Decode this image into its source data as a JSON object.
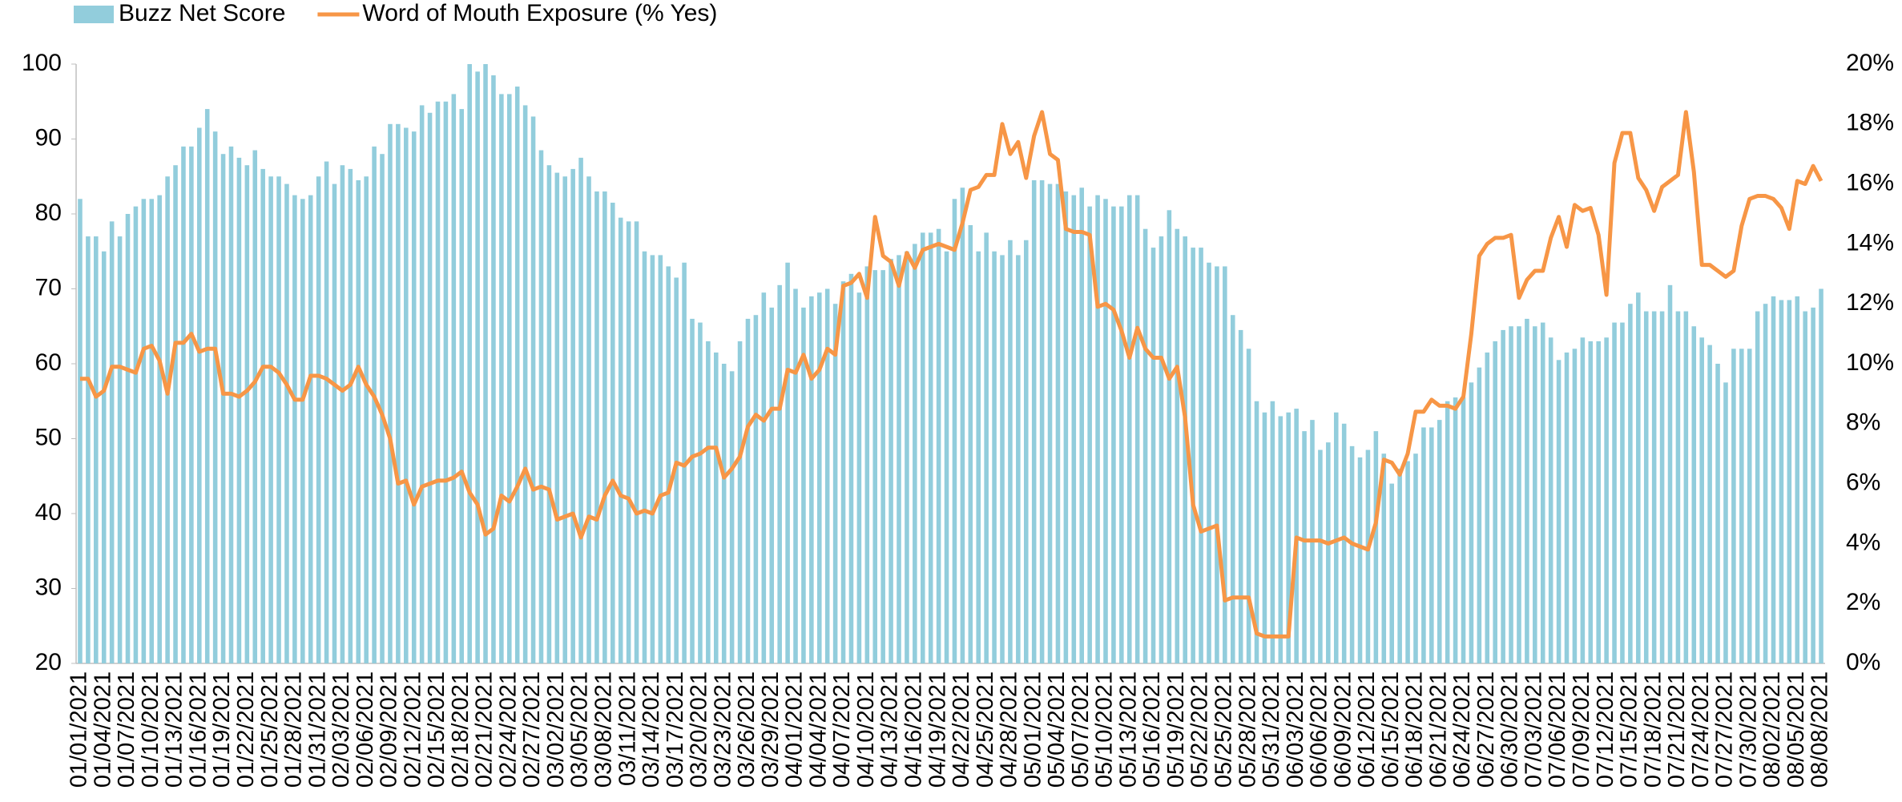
{
  "chart_data": {
    "type": "bar_line",
    "categories": [
      "01/01/2021",
      null,
      null,
      "01/04/2021",
      null,
      null,
      "01/07/2021",
      null,
      null,
      "01/10/2021",
      null,
      null,
      "01/13/2021",
      null,
      null,
      "01/16/2021",
      null,
      null,
      "01/19/2021",
      null,
      null,
      "01/22/2021",
      null,
      null,
      "01/25/2021",
      null,
      null,
      "01/28/2021",
      null,
      null,
      "01/31/2021",
      null,
      null,
      "02/03/2021",
      null,
      null,
      "02/06/2021",
      null,
      null,
      "02/09/2021",
      null,
      null,
      "02/12/2021",
      null,
      null,
      "02/15/2021",
      null,
      null,
      "02/18/2021",
      null,
      null,
      "02/21/2021",
      null,
      null,
      "02/24/2021",
      null,
      null,
      "02/27/2021",
      null,
      null,
      "03/02/2021",
      null,
      null,
      "03/05/2021",
      null,
      null,
      "03/08/2021",
      null,
      null,
      "03/11/2021",
      null,
      null,
      "03/14/2021",
      null,
      null,
      "03/17/2021",
      null,
      null,
      "03/20/2021",
      null,
      null,
      "03/23/2021",
      null,
      null,
      "03/26/2021",
      null,
      null,
      "03/29/2021",
      null,
      null,
      "04/01/2021",
      null,
      null,
      "04/04/2021",
      null,
      null,
      "04/07/2021",
      null,
      null,
      "04/10/2021",
      null,
      null,
      "04/13/2021",
      null,
      null,
      "04/16/2021",
      null,
      null,
      "04/19/2021",
      null,
      null,
      "04/22/2021",
      null,
      null,
      "04/25/2021",
      null,
      null,
      "04/28/2021",
      null,
      null,
      "05/01/2021",
      null,
      null,
      "05/04/2021",
      null,
      null,
      "05/07/2021",
      null,
      null,
      "05/10/2021",
      null,
      null,
      "05/13/2021",
      null,
      null,
      "05/16/2021",
      null,
      null,
      "05/19/2021",
      null,
      null,
      "05/22/2021",
      null,
      null,
      "05/25/2021",
      null,
      null,
      "05/28/2021",
      null,
      null,
      "05/31/2021",
      null,
      null,
      "06/03/2021",
      null,
      null,
      "06/06/2021",
      null,
      null,
      "06/09/2021",
      null,
      null,
      "06/12/2021",
      null,
      null,
      "06/15/2021",
      null,
      null,
      "06/18/2021",
      null,
      null,
      "06/21/2021",
      null,
      null,
      "06/24/2021",
      null,
      null,
      "06/27/2021",
      null,
      null,
      "06/30/2021",
      null,
      null,
      "07/03/2021",
      null,
      null,
      "07/06/2021",
      null,
      null,
      "07/09/2021",
      null,
      null,
      "07/12/2021",
      null,
      null,
      "07/15/2021",
      null,
      null,
      "07/18/2021",
      null,
      null,
      "07/21/2021",
      null,
      null,
      "07/24/2021",
      null,
      null,
      "07/27/2021",
      null,
      null,
      "07/30/2021",
      null,
      null,
      "08/02/2021",
      null,
      null,
      "08/05/2021",
      null,
      null,
      "08/08/2021"
    ],
    "series": [
      {
        "name": "Buzz Net Score",
        "type": "bar",
        "color": "#92cddc",
        "values": [
          82,
          77,
          77,
          75,
          79,
          77,
          80,
          81,
          82,
          82,
          82.5,
          85,
          86.5,
          89,
          89,
          91.5,
          94,
          91,
          88,
          89,
          87.5,
          86.5,
          88.5,
          86,
          85,
          85,
          84,
          82.5,
          82,
          82.5,
          85,
          87,
          84,
          86.5,
          86,
          84.5,
          85,
          89,
          88,
          92,
          92,
          91.5,
          91,
          94.5,
          93.5,
          95,
          95,
          96,
          94,
          100,
          99,
          100,
          98.5,
          96,
          96,
          97,
          94.5,
          93,
          88.5,
          86.5,
          85.5,
          85,
          86,
          87.5,
          85,
          83,
          83,
          81.5,
          79.5,
          79,
          79,
          75,
          74.5,
          74.5,
          73,
          71.5,
          73.5,
          66,
          65.5,
          63,
          61.5,
          60,
          59,
          63,
          66,
          66.5,
          69.5,
          67.5,
          70.5,
          73.5,
          70,
          67.5,
          69,
          69.5,
          70,
          68,
          71,
          72,
          69.5,
          73,
          72.5,
          72.5,
          74,
          74.5,
          75,
          76,
          77.5,
          77.5,
          78,
          75,
          82,
          83.5,
          78.5,
          75,
          77.5,
          75,
          74.5,
          76.5,
          74.5,
          76.5,
          84.5,
          84.5,
          84,
          84,
          83,
          82.5,
          83.5,
          81,
          82.5,
          82,
          81,
          81,
          82.5,
          82.5,
          78,
          75.5,
          77,
          80.5,
          78,
          77,
          75.5,
          75.5,
          73.5,
          73,
          73,
          66.5,
          64.5,
          62,
          55,
          53.5,
          55,
          53,
          53.5,
          54,
          51,
          52.5,
          48.5,
          49.5,
          53.5,
          52,
          49,
          47.5,
          48.5,
          51,
          48,
          44,
          46,
          47,
          48,
          51.5,
          51.5,
          52.5,
          55,
          55.5,
          55.5,
          57.5,
          59.5,
          61.5,
          63,
          64.5,
          65,
          65,
          66,
          65,
          65.5,
          63.5,
          60.5,
          61.5,
          62,
          63.5,
          63,
          63,
          63.5,
          65.5,
          65.5,
          68,
          69.5,
          67,
          67,
          67,
          70.5,
          67,
          67,
          65,
          63.5,
          62.5,
          60,
          57.5,
          62,
          62,
          62,
          67,
          68,
          69,
          68.5,
          68.5,
          69,
          67,
          67.5,
          70
        ]
      },
      {
        "name": "Word of Mouth Exposure (% Yes)",
        "type": "line",
        "axis": "y2",
        "color": "#f79646",
        "values": [
          9.5,
          9.5,
          8.9,
          9.1,
          9.9,
          9.9,
          9.8,
          9.7,
          10.5,
          10.6,
          10.1,
          9.0,
          10.7,
          10.7,
          11.0,
          10.4,
          10.5,
          10.5,
          9.0,
          9.0,
          8.9,
          9.1,
          9.4,
          9.9,
          9.9,
          9.7,
          9.3,
          8.8,
          8.8,
          9.6,
          9.6,
          9.5,
          9.3,
          9.1,
          9.3,
          9.9,
          9.3,
          8.9,
          8.3,
          7.5,
          6.0,
          6.1,
          5.3,
          5.9,
          6.0,
          6.1,
          6.1,
          6.2,
          6.4,
          5.7,
          5.3,
          4.3,
          4.5,
          5.6,
          5.4,
          5.9,
          6.5,
          5.8,
          5.9,
          5.8,
          4.8,
          4.9,
          5.0,
          4.2,
          4.9,
          4.8,
          5.6,
          6.1,
          5.6,
          5.5,
          5.0,
          5.1,
          5.0,
          5.6,
          5.7,
          6.7,
          6.6,
          6.9,
          7.0,
          7.2,
          7.2,
          6.2,
          6.5,
          6.9,
          7.9,
          8.3,
          8.1,
          8.5,
          8.5,
          9.8,
          9.7,
          10.3,
          9.5,
          9.8,
          10.5,
          10.3,
          12.6,
          12.7,
          13.0,
          12.2,
          14.9,
          13.6,
          13.4,
          12.6,
          13.7,
          13.2,
          13.8,
          13.9,
          14.0,
          13.9,
          13.8,
          14.7,
          15.8,
          15.9,
          16.3,
          16.3,
          18.0,
          17.0,
          17.4,
          16.2,
          17.6,
          18.4,
          17.0,
          16.8,
          14.5,
          14.4,
          14.4,
          14.3,
          11.9,
          12.0,
          11.8,
          11.1,
          10.2,
          11.2,
          10.5,
          10.2,
          10.2,
          9.5,
          9.9,
          8.2,
          5.3,
          4.4,
          4.5,
          4.6,
          2.1,
          2.2,
          2.2,
          2.2,
          1.0,
          0.9,
          0.9,
          0.9,
          0.9,
          4.2,
          4.1,
          4.1,
          4.1,
          4.0,
          4.1,
          4.2,
          4.0,
          3.9,
          3.8,
          4.7,
          6.8,
          6.7,
          6.3,
          7.0,
          8.4,
          8.4,
          8.8,
          8.6,
          8.6,
          8.5,
          8.9,
          11.0,
          13.6,
          14.0,
          14.2,
          14.2,
          14.3,
          12.2,
          12.8,
          13.1,
          13.1,
          14.2,
          14.9,
          13.9,
          15.3,
          15.1,
          15.2,
          14.3,
          12.3,
          16.7,
          17.7,
          17.7,
          16.2,
          15.8,
          15.1,
          15.9,
          16.1,
          16.3,
          18.4,
          16.4,
          13.3,
          13.3,
          13.1,
          12.9,
          13.1,
          14.6,
          15.5,
          15.6,
          15.6,
          15.5,
          15.2,
          14.5,
          16.1,
          16.0,
          16.6,
          16.1
        ]
      }
    ],
    "ylim": [
      20,
      100
    ],
    "yticks": [
      20,
      30,
      40,
      50,
      60,
      70,
      80,
      90,
      100
    ],
    "y2lim": [
      0,
      20
    ],
    "y2ticks": [
      {
        "value": 0,
        "label": "0%"
      },
      {
        "value": 2,
        "label": "2%"
      },
      {
        "value": 4,
        "label": "4%"
      },
      {
        "value": 6,
        "label": "6%"
      },
      {
        "value": 8,
        "label": "8%"
      },
      {
        "value": 10,
        "label": "10%"
      },
      {
        "value": 12,
        "label": "12%"
      },
      {
        "value": 14,
        "label": "14%"
      },
      {
        "value": 16,
        "label": "16%"
      },
      {
        "value": 18,
        "label": "18%"
      },
      {
        "value": 20,
        "label": "20%"
      }
    ],
    "grid": false,
    "legend": "top-left"
  }
}
